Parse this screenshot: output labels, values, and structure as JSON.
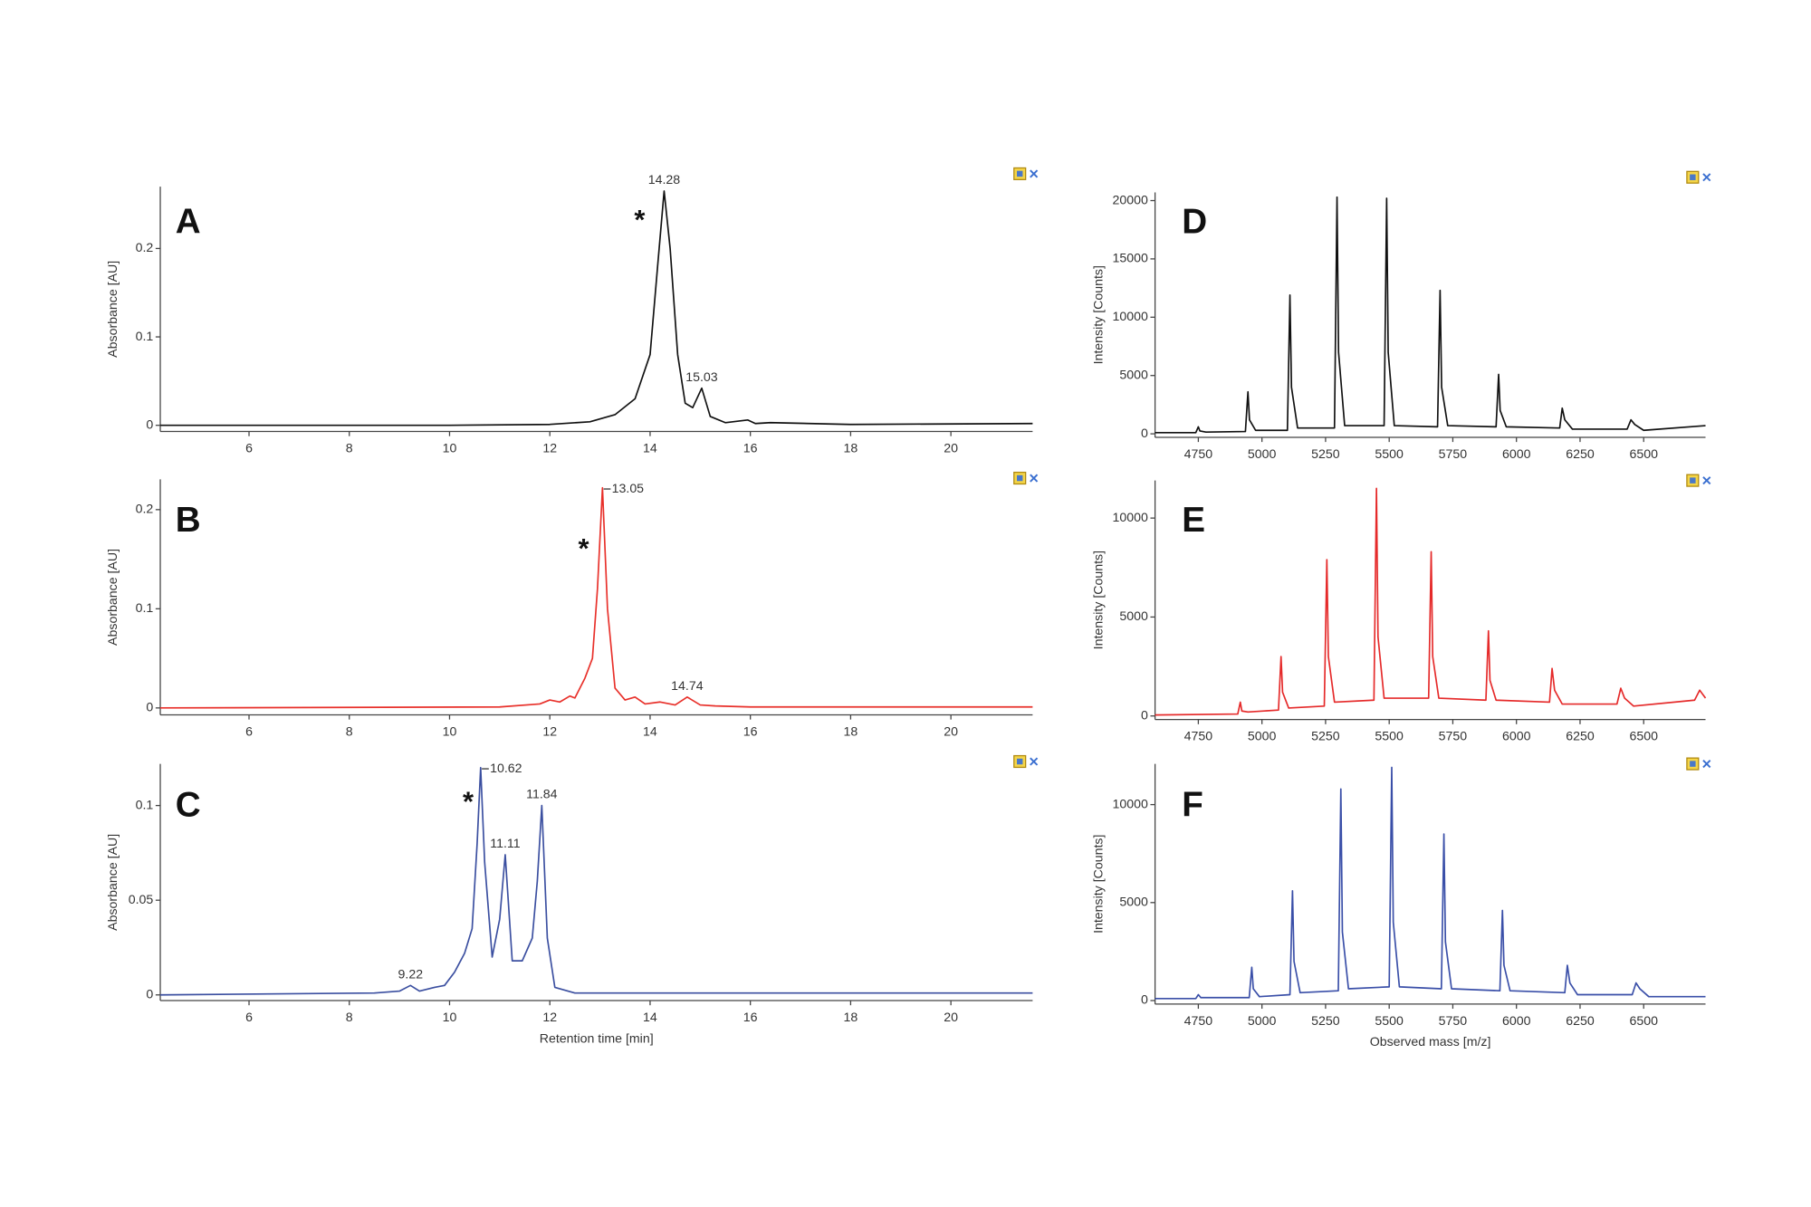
{
  "chart_data": [
    {
      "type": "line",
      "panel_label": "A",
      "annotation": "*",
      "y_label": "Absorbance [AU]",
      "color": "#111111",
      "x": [
        4.23,
        10,
        12,
        12.8,
        13.3,
        13.7,
        14.0,
        14.15,
        14.28,
        14.4,
        14.55,
        14.7,
        14.85,
        15.03,
        15.2,
        15.5,
        15.95,
        16.1,
        16.4,
        18,
        21.63
      ],
      "values": [
        0.0,
        0.0,
        0.001,
        0.004,
        0.012,
        0.03,
        0.08,
        0.18,
        0.265,
        0.2,
        0.08,
        0.025,
        0.02,
        0.042,
        0.01,
        0.003,
        0.006,
        0.002,
        0.003,
        0.001,
        0.002
      ],
      "peaks": [
        14.28,
        15.03
      ],
      "xlim": [
        4.23,
        21.63
      ],
      "xticks": [
        6,
        8,
        10,
        12,
        14,
        16,
        18,
        20
      ],
      "ylim": [
        -0.007,
        0.27
      ],
      "yticks": [
        0,
        0.1,
        0.2
      ]
    },
    {
      "type": "line",
      "panel_label": "B",
      "annotation": "*",
      "y_label": "Absorbance [AU]",
      "color": "#e8302a",
      "x": [
        4.23,
        11,
        11.8,
        12.0,
        12.2,
        12.4,
        12.5,
        12.7,
        12.85,
        12.95,
        13.05,
        13.15,
        13.3,
        13.5,
        13.7,
        13.9,
        14.2,
        14.5,
        14.74,
        15.0,
        15.3,
        16,
        21.63
      ],
      "values": [
        0,
        0.001,
        0.004,
        0.008,
        0.006,
        0.012,
        0.01,
        0.03,
        0.05,
        0.12,
        0.222,
        0.1,
        0.02,
        0.008,
        0.011,
        0.004,
        0.006,
        0.003,
        0.011,
        0.003,
        0.002,
        0.001,
        0.001
      ],
      "peaks": [
        13.05,
        14.74
      ],
      "xlim": [
        4.23,
        21.63
      ],
      "xticks": [
        6,
        8,
        10,
        12,
        14,
        16,
        18,
        20
      ],
      "ylim": [
        -0.007,
        0.2306
      ],
      "yticks": [
        0,
        0.1,
        0.2
      ]
    },
    {
      "type": "line",
      "panel_label": "C",
      "annotation": "*",
      "y_label": "Absorbance [AU]",
      "x_label": "Retention time [min]",
      "color": "#3b4fa0",
      "x": [
        4.23,
        8.5,
        9.0,
        9.22,
        9.4,
        9.7,
        9.9,
        10.1,
        10.3,
        10.45,
        10.55,
        10.62,
        10.7,
        10.85,
        11.0,
        11.11,
        11.25,
        11.45,
        11.65,
        11.75,
        11.84,
        11.95,
        12.1,
        12.5,
        21.63
      ],
      "values": [
        0,
        0.001,
        0.002,
        0.005,
        0.002,
        0.004,
        0.005,
        0.012,
        0.022,
        0.035,
        0.08,
        0.12,
        0.07,
        0.02,
        0.04,
        0.074,
        0.018,
        0.018,
        0.03,
        0.06,
        0.1,
        0.03,
        0.004,
        0.001,
        0.001
      ],
      "peaks": [
        10.62,
        11.11,
        11.84,
        9.22
      ],
      "xlim": [
        4.23,
        21.63
      ],
      "xticks": [
        6,
        8,
        10,
        12,
        14,
        16,
        18,
        20
      ],
      "ylim": [
        -0.003,
        0.122
      ],
      "yticks": [
        0,
        0.05,
        0.1
      ]
    },
    {
      "type": "line",
      "panel_label": "D",
      "y_label": "Intensity [Counts]",
      "color": "#111111",
      "x": [
        4580,
        4740,
        4750,
        4756,
        4780,
        4935,
        4945,
        4951,
        4975,
        5100,
        5110,
        5116,
        5140,
        5285,
        5295,
        5301,
        5325,
        5480,
        5490,
        5496,
        5520,
        5690,
        5700,
        5706,
        5730,
        5920,
        5930,
        5936,
        5960,
        6170,
        6180,
        6190,
        6220,
        6435,
        6450,
        6465,
        6500,
        6743
      ],
      "values": [
        100,
        100,
        600,
        250,
        150,
        200,
        3600,
        1200,
        300,
        300,
        11900,
        4000,
        500,
        500,
        20300,
        7000,
        700,
        700,
        20200,
        7000,
        700,
        600,
        12300,
        4000,
        700,
        600,
        5100,
        2000,
        600,
        500,
        2200,
        1200,
        400,
        400,
        1200,
        800,
        300,
        700
      ],
      "xlim": [
        4580,
        6743
      ],
      "xticks": [
        4750,
        5000,
        5250,
        5500,
        5750,
        6000,
        6250,
        6500
      ],
      "ylim": [
        -300,
        20700
      ],
      "yticks": [
        0,
        5000,
        10000,
        15000,
        20000
      ]
    },
    {
      "type": "line",
      "panel_label": "E",
      "y_label": "Intensity [Counts]",
      "color": "#e52a2a",
      "x": [
        4580,
        4905,
        4915,
        4921,
        4945,
        5065,
        5075,
        5081,
        5105,
        5245,
        5255,
        5261,
        5285,
        5440,
        5450,
        5456,
        5480,
        5655,
        5665,
        5671,
        5695,
        5880,
        5890,
        5896,
        5920,
        6130,
        6140,
        6150,
        6180,
        6395,
        6410,
        6425,
        6460,
        6700,
        6720,
        6743
      ],
      "values": [
        50,
        100,
        700,
        250,
        200,
        300,
        3000,
        1200,
        400,
        500,
        7900,
        3000,
        700,
        800,
        11500,
        4000,
        900,
        900,
        8300,
        3000,
        900,
        800,
        4300,
        1800,
        800,
        700,
        2400,
        1300,
        600,
        600,
        1400,
        900,
        500,
        800,
        1300,
        900
      ],
      "xlim": [
        4580,
        6743
      ],
      "xticks": [
        4750,
        5000,
        5250,
        5500,
        5750,
        6000,
        6250,
        6500
      ],
      "ylim": [
        -180,
        11900
      ],
      "yticks": [
        0,
        5000,
        10000
      ]
    },
    {
      "type": "line",
      "panel_label": "F",
      "y_label": "Intensity [Counts]",
      "x_label": "Observed mass [m/z]",
      "color": "#3a4fa8",
      "x": [
        4580,
        4740,
        4750,
        4760,
        4950,
        4960,
        4966,
        4990,
        5110,
        5120,
        5126,
        5150,
        5300,
        5310,
        5316,
        5340,
        5500,
        5510,
        5516,
        5540,
        5705,
        5715,
        5721,
        5745,
        5935,
        5945,
        5951,
        5975,
        6190,
        6200,
        6210,
        6240,
        6455,
        6470,
        6485,
        6520,
        6743
      ],
      "values": [
        100,
        100,
        300,
        150,
        150,
        1700,
        600,
        200,
        300,
        5600,
        2000,
        400,
        500,
        10800,
        3500,
        600,
        700,
        11900,
        4000,
        700,
        600,
        8500,
        3000,
        600,
        500,
        4600,
        1800,
        500,
        400,
        1800,
        900,
        300,
        300,
        900,
        600,
        200,
        200
      ],
      "xlim": [
        4580,
        6743
      ],
      "xticks": [
        4750,
        5000,
        5250,
        5500,
        5750,
        6000,
        6250,
        6500
      ],
      "ylim": [
        -180,
        12080
      ],
      "yticks": [
        0,
        5000,
        10000
      ]
    }
  ]
}
